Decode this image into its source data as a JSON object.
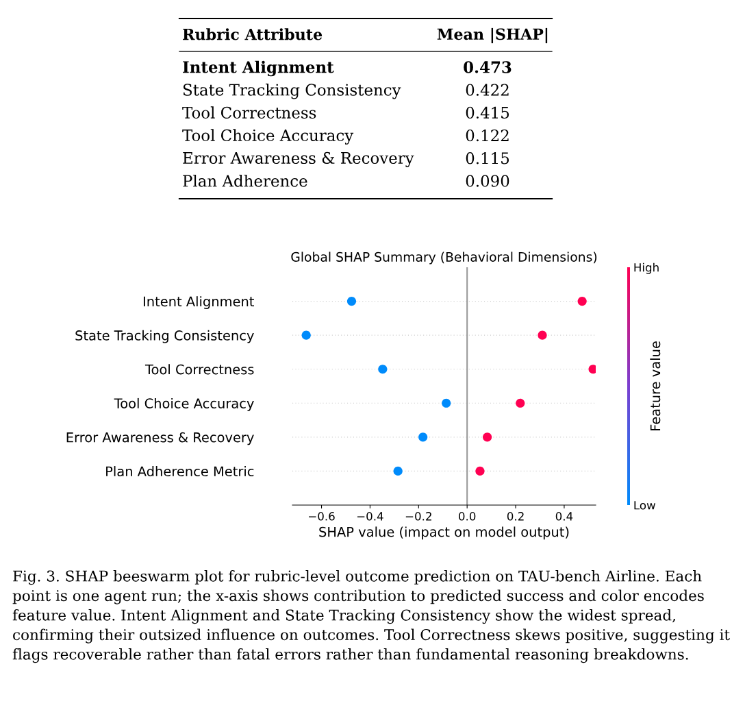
{
  "chart_data": [
    {
      "type": "other",
      "annotations": [
        "Rubric Attribute",
        "Mean |SHAP|"
      ],
      "categories": [
        "Intent Alignment",
        "State Tracking Consistency",
        "Tool Correctness",
        "Tool Choice Accuracy",
        "Error Awareness & Recovery",
        "Plan Adherence"
      ],
      "value_labels": [
        "0.473",
        "0.422",
        "0.415",
        "0.122",
        "0.115",
        "0.090"
      ]
    },
    {
      "type": "scatter",
      "orientation": "horizontal",
      "title": "Global SHAP Summary (Behavioral Dimensions)",
      "xlabel": "SHAP value (impact on model output)",
      "clabel": "Feature value",
      "categories": [
        "Intent Alignment",
        "State Tracking Consistency",
        "Tool Correctness",
        "Tool Choice Accuracy",
        "Error Awareness & Recovery",
        "Plan Adherence Metric"
      ],
      "series": [
        {
          "values": [
            -0.476,
            -0.663,
            -0.348,
            -0.086,
            -0.182,
            -0.285
          ],
          "color": "#008bfb"
        },
        {
          "values": [
            0.474,
            0.31,
            0.519,
            0.219,
            0.083,
            0.053
          ],
          "color": "#ff0052"
        }
      ],
      "xlim": [
        -0.72,
        0.53
      ],
      "xticks": [
        {
          "value": -0.6,
          "label": "−0.6"
        },
        {
          "value": -0.4,
          "label": "−0.4"
        },
        {
          "value": -0.2,
          "label": "−0.2"
        },
        {
          "value": 0,
          "label": "0.0"
        },
        {
          "value": 0.2,
          "label": "0.2"
        },
        {
          "value": 0.4,
          "label": "0.4"
        }
      ],
      "clim": [
        0,
        1
      ],
      "cticks": [
        {
          "value": 0,
          "label": "Low"
        },
        {
          "value": 1,
          "label": "High"
        }
      ],
      "grid": "y",
      "ref_lines": [
        {
          "axis": "x",
          "value": 0,
          "color": "#999999"
        }
      ],
      "annotations": [
        "Fig. 3. SHAP beeswarm plot for rubric-level outcome prediction on TAU-bench Airline. Each point is one agent run; the x-axis shows contribution to predicted success and color encodes feature value. Intent Alignment and State Tracking Consistency show the widest spread, confirming their outsized influence on outcomes. Tool Correctness skews positive, suggesting it flags recoverable rather than fatal errors rather than fundamental reasoning breakdowns."
      ]
    }
  ]
}
